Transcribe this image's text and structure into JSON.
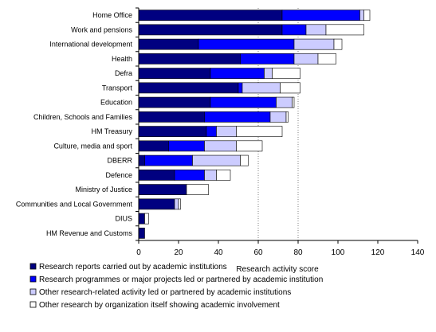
{
  "chart_data": {
    "type": "bar",
    "orientation": "horizontal",
    "stacked": true,
    "categories": [
      "Home Office",
      "Work and pensions",
      "International development",
      "Health",
      "Defra",
      "Transport",
      "Education",
      "Children, Schools and Families",
      "HM Treasury",
      "Culture, media and sport",
      "DBERR",
      "Defence",
      "Ministry of Justice",
      "Communities and Local Government",
      "DIUS",
      "HM Revenue and Customs"
    ],
    "series": [
      {
        "name": "Research reports carried out by academic institutions",
        "color": "#000080",
        "values": [
          72,
          72,
          30,
          51,
          36,
          50,
          36,
          33,
          34,
          15,
          3,
          18,
          24,
          18,
          3,
          3
        ]
      },
      {
        "name": "Research programmes or major projects led or partnered by academic institution",
        "color": "#0000ff",
        "values": [
          39,
          12,
          48,
          27,
          27,
          2,
          33,
          33,
          5,
          18,
          24,
          15,
          0,
          0,
          0,
          0
        ]
      },
      {
        "name": "Other research-related activity led or partnered by academic institutions",
        "color": "#ccccff",
        "values": [
          2,
          10,
          20,
          12,
          4,
          19,
          8,
          8,
          10,
          16,
          24,
          6,
          0,
          2,
          0,
          0
        ]
      },
      {
        "name": "Other research by organization itself showing academic involvement",
        "color": "#ffffff",
        "values": [
          3,
          19,
          4,
          9,
          14,
          10,
          1,
          1,
          23,
          13,
          4,
          7,
          11,
          1,
          2,
          0
        ]
      }
    ],
    "xlabel": "Research activity score",
    "xlim": [
      0,
      140
    ],
    "xticks": [
      0,
      20,
      40,
      60,
      80,
      100,
      120,
      140
    ],
    "gridlines": [
      60,
      80
    ],
    "legend_position": "bottom"
  }
}
